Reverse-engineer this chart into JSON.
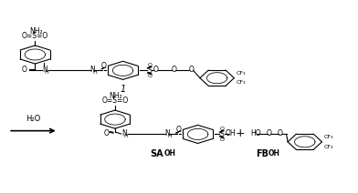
{
  "bg_color": "#ffffff",
  "fig_width": 3.92,
  "fig_height": 2.12,
  "dpi": 100,
  "arrow_label": "H₂O",
  "compound_label": "1",
  "product1_label": "SA",
  "product1_sub": "OH",
  "product2_label": "FB",
  "product2_sub": "OH"
}
